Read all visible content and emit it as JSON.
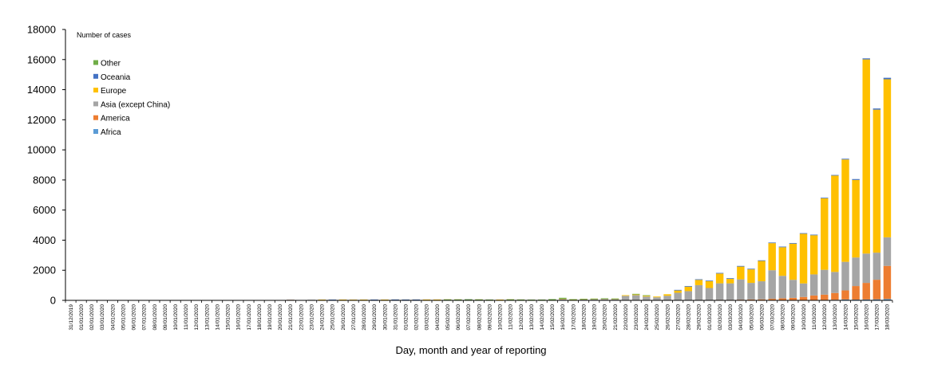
{
  "chart_data": {
    "type": "bar",
    "stacked": true,
    "title": "",
    "ylabel": "Number of cases",
    "xlabel": "Day, month and year of reporting",
    "ylim": [
      0,
      18000
    ],
    "yticks": [
      0,
      2000,
      4000,
      6000,
      8000,
      10000,
      12000,
      14000,
      16000,
      18000
    ],
    "grid": false,
    "legend_position": "top-left",
    "legend_order": [
      "Other",
      "Oceania",
      "Europe",
      "Asia (except China)",
      "America",
      "Africa"
    ],
    "categories": [
      "31/12/2019",
      "01/01/2020",
      "02/01/2020",
      "03/01/2020",
      "04/01/2020",
      "05/01/2020",
      "06/01/2020",
      "07/01/2020",
      "08/01/2020",
      "09/01/2020",
      "10/01/2020",
      "11/01/2020",
      "12/01/2020",
      "13/01/2020",
      "14/01/2020",
      "15/01/2020",
      "16/01/2020",
      "17/01/2020",
      "18/01/2020",
      "19/01/2020",
      "20/01/2020",
      "21/01/2020",
      "22/01/2020",
      "23/01/2020",
      "24/01/2020",
      "25/01/2020",
      "26/01/2020",
      "27/01/2020",
      "28/01/2020",
      "29/01/2020",
      "30/01/2020",
      "31/01/2020",
      "01/02/2020",
      "02/02/2020",
      "03/02/2020",
      "04/02/2020",
      "05/02/2020",
      "06/02/2020",
      "07/02/2020",
      "08/02/2020",
      "09/02/2020",
      "10/02/2020",
      "11/02/2020",
      "12/02/2020",
      "13/02/2020",
      "14/02/2020",
      "15/02/2020",
      "16/02/2020",
      "17/02/2020",
      "18/02/2020",
      "19/02/2020",
      "20/02/2020",
      "21/02/2020",
      "22/02/2020",
      "23/02/2020",
      "24/02/2020",
      "25/02/2020",
      "26/02/2020",
      "27/02/2020",
      "28/02/2020",
      "29/02/2020",
      "01/03/2020",
      "02/03/2020",
      "03/03/2020",
      "04/03/2020",
      "05/03/2020",
      "06/03/2020",
      "07/03/2020",
      "08/03/2020",
      "09/03/2020",
      "10/03/2020",
      "11/03/2020",
      "12/03/2020",
      "13/03/2020",
      "14/03/2020",
      "15/03/2020",
      "16/03/2020",
      "17/03/2020",
      "18/03/2020"
    ],
    "series": [
      {
        "name": "Africa",
        "color": "#5b9bd5",
        "values": [
          0,
          0,
          0,
          0,
          0,
          0,
          0,
          0,
          0,
          0,
          0,
          0,
          0,
          0,
          0,
          0,
          0,
          0,
          0,
          0,
          0,
          0,
          0,
          0,
          0,
          0,
          0,
          0,
          0,
          0,
          0,
          0,
          0,
          0,
          0,
          0,
          0,
          0,
          0,
          0,
          0,
          0,
          0,
          0,
          0,
          1,
          0,
          0,
          0,
          0,
          0,
          0,
          0,
          0,
          0,
          0,
          0,
          1,
          0,
          1,
          0,
          1,
          2,
          2,
          5,
          10,
          8,
          12,
          20,
          15,
          25,
          25,
          30,
          40,
          60,
          50,
          60,
          70,
          90
        ]
      },
      {
        "name": "America",
        "color": "#ed7d31",
        "values": [
          0,
          0,
          0,
          0,
          0,
          0,
          0,
          0,
          0,
          0,
          0,
          0,
          0,
          0,
          0,
          0,
          0,
          0,
          0,
          0,
          0,
          1,
          0,
          0,
          2,
          0,
          1,
          0,
          2,
          0,
          0,
          2,
          2,
          1,
          0,
          0,
          2,
          0,
          0,
          0,
          0,
          0,
          0,
          0,
          0,
          0,
          0,
          0,
          0,
          0,
          0,
          0,
          2,
          0,
          0,
          0,
          3,
          5,
          5,
          10,
          10,
          20,
          30,
          30,
          40,
          50,
          60,
          90,
          110,
          150,
          200,
          300,
          350,
          450,
          600,
          900,
          1100,
          1300,
          2200
        ]
      },
      {
        "name": "Asia (except China)",
        "color": "#a5a5a5",
        "values": [
          0,
          0,
          0,
          0,
          0,
          0,
          0,
          0,
          0,
          0,
          0,
          0,
          0,
          0,
          0,
          0,
          0,
          0,
          0,
          0,
          0,
          2,
          0,
          5,
          5,
          8,
          10,
          5,
          8,
          10,
          10,
          10,
          10,
          12,
          15,
          15,
          20,
          20,
          25,
          20,
          10,
          10,
          25,
          15,
          5,
          10,
          20,
          80,
          30,
          60,
          70,
          90,
          70,
          300,
          350,
          250,
          200,
          300,
          500,
          600,
          1000,
          800,
          1100,
          1100,
          1350,
          1100,
          1200,
          1900,
          1500,
          1200,
          900,
          1400,
          1650,
          1400,
          1900,
          1900,
          1950,
          1800,
          1900
        ]
      },
      {
        "name": "Europe",
        "color": "#ffc000",
        "values": [
          0,
          0,
          0,
          0,
          0,
          0,
          0,
          0,
          0,
          0,
          0,
          0,
          0,
          0,
          0,
          0,
          0,
          0,
          0,
          0,
          0,
          0,
          0,
          0,
          2,
          2,
          1,
          2,
          2,
          2,
          2,
          5,
          2,
          2,
          1,
          1,
          1,
          2,
          2,
          3,
          5,
          1,
          2,
          1,
          5,
          1,
          2,
          20,
          5,
          5,
          5,
          5,
          10,
          20,
          40,
          50,
          50,
          100,
          150,
          300,
          350,
          450,
          650,
          300,
          850,
          900,
          1350,
          1800,
          1900,
          2400,
          3300,
          2600,
          4750,
          6400,
          6800,
          5150,
          12900,
          9500,
          10500
        ]
      },
      {
        "name": "Oceania",
        "color": "#4472c4",
        "values": [
          0,
          0,
          0,
          0,
          0,
          0,
          0,
          0,
          0,
          0,
          0,
          0,
          0,
          0,
          0,
          0,
          0,
          0,
          0,
          0,
          0,
          0,
          0,
          0,
          0,
          2,
          0,
          0,
          0,
          3,
          0,
          1,
          3,
          1,
          0,
          0,
          0,
          0,
          1,
          0,
          0,
          0,
          0,
          0,
          0,
          0,
          0,
          0,
          0,
          0,
          0,
          0,
          0,
          0,
          0,
          0,
          0,
          0,
          5,
          1,
          1,
          1,
          5,
          2,
          5,
          10,
          10,
          10,
          15,
          20,
          20,
          20,
          30,
          40,
          50,
          60,
          70,
          80,
          100
        ]
      },
      {
        "name": "Other",
        "color": "#70ad47",
        "values": [
          0,
          0,
          0,
          0,
          0,
          0,
          0,
          0,
          0,
          0,
          0,
          0,
          0,
          0,
          0,
          0,
          0,
          0,
          0,
          0,
          0,
          0,
          0,
          0,
          0,
          0,
          0,
          0,
          0,
          0,
          0,
          0,
          0,
          0,
          0,
          0,
          10,
          10,
          20,
          5,
          5,
          0,
          40,
          40,
          10,
          40,
          60,
          70,
          10,
          10,
          20,
          10,
          10,
          0,
          10,
          20,
          0,
          0,
          0,
          0,
          0,
          0,
          0,
          0,
          0,
          0,
          0,
          0,
          0,
          0,
          0,
          0,
          0,
          0,
          0,
          0,
          0,
          0,
          0
        ]
      }
    ]
  }
}
